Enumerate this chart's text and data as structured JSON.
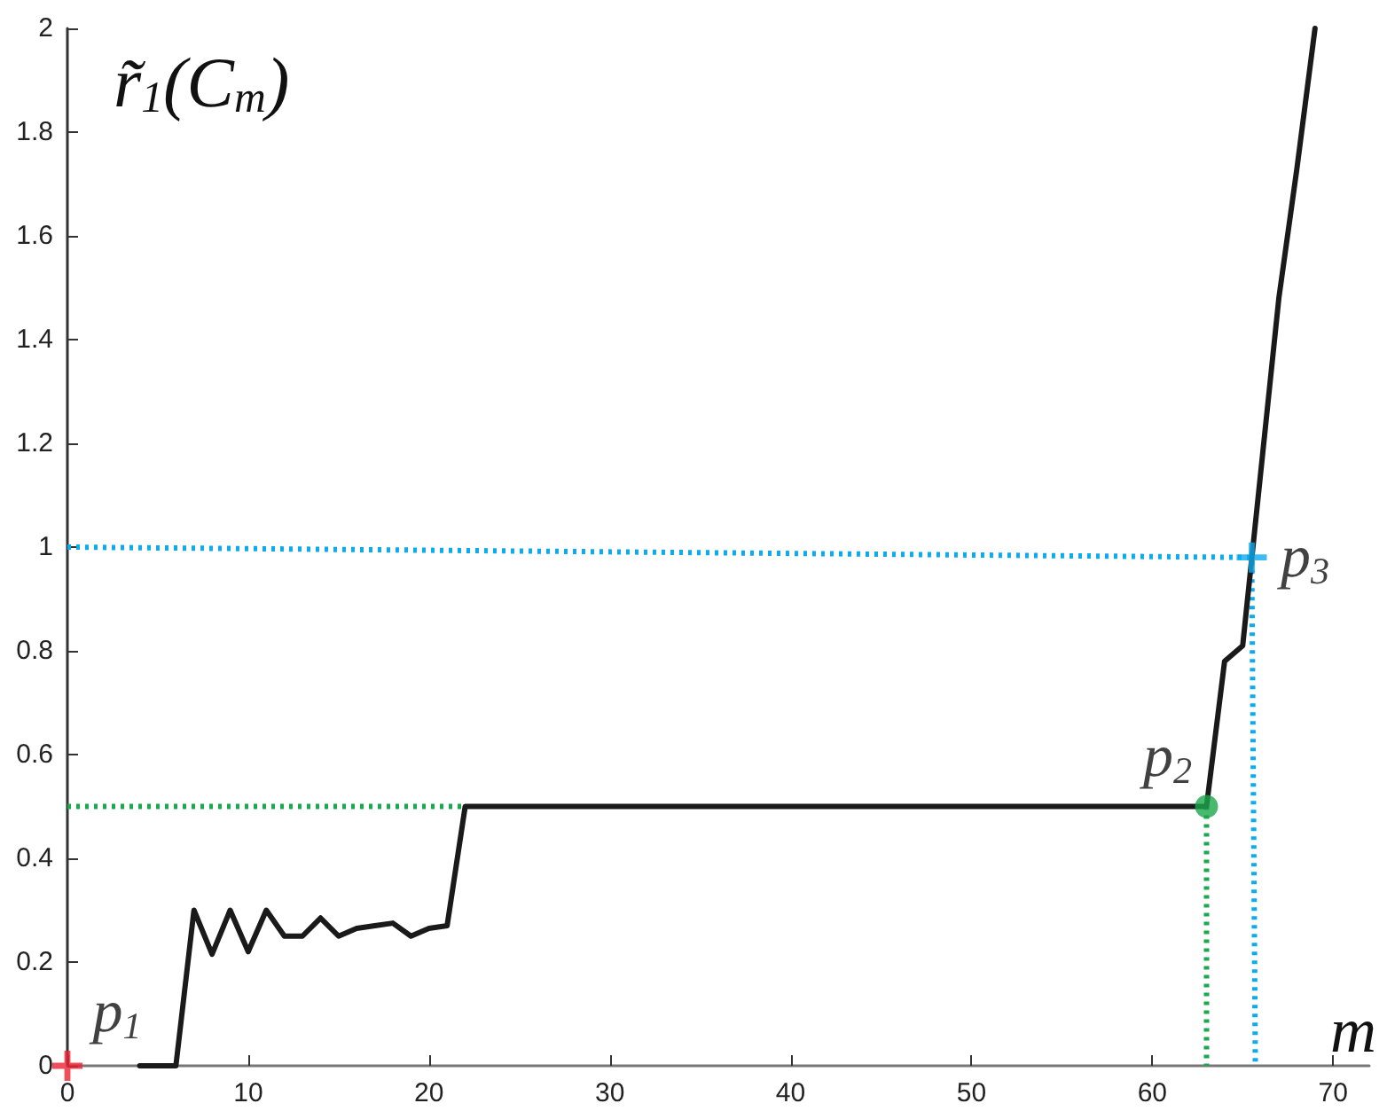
{
  "chart_data": {
    "type": "line",
    "xlabel": "m",
    "ylabel": "r̃$_{1}$(C$_{m}$)",
    "xlim": [
      0,
      72
    ],
    "ylim": [
      0,
      2
    ],
    "xticks": [
      0,
      10,
      20,
      30,
      40,
      50,
      60,
      70
    ],
    "yticks": [
      0,
      0.2,
      0.4,
      0.6,
      0.8,
      1,
      1.2,
      1.4,
      1.6,
      1.8,
      2
    ],
    "grid": false,
    "annotations": [
      {
        "text": "p$_{1}$",
        "x": 0,
        "y": 0
      },
      {
        "text": "p$_{2}$",
        "x": 63,
        "y": 0.5
      },
      {
        "text": "p$_{3}$",
        "x": 65.5,
        "y": 0.98
      }
    ],
    "series": [
      {
        "color": "#0eaaee",
        "line_style": "dotted",
        "marker": "none",
        "x": [
          0,
          65.5,
          65.7
        ],
        "values": [
          1,
          0.98,
          0
        ]
      },
      {
        "color": "#1ca84c",
        "line_style": "dotted",
        "marker": "none",
        "x": [
          0,
          22
        ],
        "values": [
          0.5,
          0.5
        ]
      },
      {
        "color": "#1ca84c",
        "line_style": "dotted",
        "marker": "none",
        "x": [
          63,
          63
        ],
        "values": [
          0.5,
          0
        ]
      },
      {
        "color": "#1a1a1a",
        "line_style": "solid",
        "marker": "none",
        "x": [
          4,
          5,
          6,
          7,
          8,
          9,
          10,
          11,
          12,
          13,
          14,
          15,
          16,
          17,
          18,
          19,
          20,
          21,
          22,
          63,
          64,
          65,
          67,
          68,
          69
        ],
        "values": [
          0,
          0,
          0,
          0.3,
          0.215,
          0.3,
          0.22,
          0.3,
          0.25,
          0.25,
          0.285,
          0.25,
          0.265,
          0.27,
          0.275,
          0.25,
          0.265,
          0.27,
          0.5,
          0.5,
          0.78,
          0.81,
          1.48,
          1.73,
          2
        ]
      },
      {
        "type": "scatter",
        "color": "#ee2233",
        "marker": "cross",
        "x": [
          0
        ],
        "values": [
          0
        ]
      },
      {
        "type": "scatter",
        "color": "#1ca84c",
        "marker": "circle",
        "x": [
          63
        ],
        "values": [
          0.5
        ]
      },
      {
        "type": "scatter",
        "color": "#0eaaee",
        "marker": "cross",
        "x": [
          65.5
        ],
        "values": [
          0.98
        ]
      }
    ]
  }
}
